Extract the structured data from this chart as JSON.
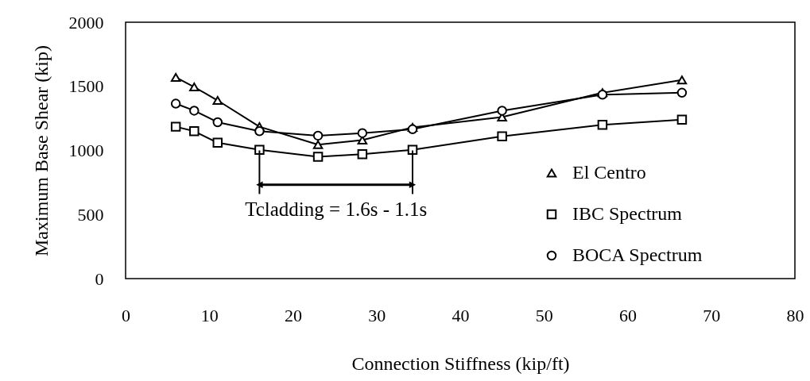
{
  "chart_data": {
    "type": "line",
    "xlabel": "Connection Stiffness (kip/ft)",
    "ylabel": "Maximum Base Shear (kip)",
    "xlim": [
      0,
      80
    ],
    "xticks": [
      0,
      10,
      20,
      30,
      40,
      50,
      60,
      70,
      80
    ],
    "ylim": [
      0,
      2000
    ],
    "yticks": [
      0,
      500,
      1000,
      1500,
      2000
    ],
    "grid": false,
    "legend": "bottom right",
    "line_style": "solid",
    "series": [
      {
        "name": "El Centro",
        "color": "#000000",
        "marker": "triangle",
        "x": [
          6,
          8.2,
          11,
          16,
          23,
          28.3,
          34.3,
          45,
          57,
          66.5
        ],
        "values": [
          1570,
          1495,
          1390,
          1185,
          1045,
          1080,
          1180,
          1260,
          1450,
          1550
        ]
      },
      {
        "name": "IBC Spectrum",
        "color": "#000000",
        "marker": "square",
        "x": [
          6,
          8.2,
          11,
          16,
          23,
          28.3,
          34.3,
          45,
          57,
          66.5
        ],
        "values": [
          1185,
          1150,
          1060,
          1005,
          950,
          970,
          1005,
          1110,
          1200,
          1240
        ]
      },
      {
        "name": "BOCA Spectrum",
        "color": "#000000",
        "marker": "circle",
        "x": [
          6,
          8.2,
          11,
          16,
          23,
          28.3,
          34.3,
          45,
          57,
          66.5
        ],
        "values": [
          1365,
          1310,
          1220,
          1150,
          1115,
          1135,
          1165,
          1310,
          1435,
          1450
        ]
      }
    ],
    "ref_lines": [
      {
        "axis": "x",
        "value": 16
      },
      {
        "axis": "x",
        "value": 34.3
      }
    ],
    "annotations": [
      "Tcladding = 1.6s - 1.1s"
    ]
  }
}
